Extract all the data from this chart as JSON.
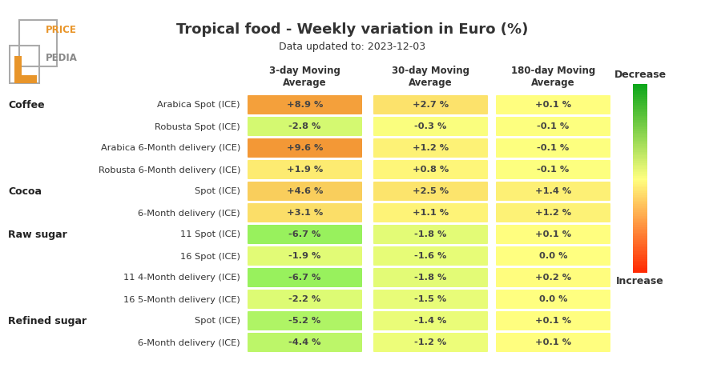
{
  "title": "Tropical food - Weekly variation in Euro (%)",
  "subtitle": "Data updated to: 2023-12-03",
  "col_headers": [
    "3-day Moving\nAverage",
    "30-day Moving\nAverage",
    "180-day Moving\nAverage"
  ],
  "categories": [
    {
      "group": "Coffee",
      "label": "Arabica Spot (ICE)"
    },
    {
      "group": "",
      "label": "Robusta Spot (ICE)"
    },
    {
      "group": "",
      "label": "Arabica 6-Month delivery (ICE)"
    },
    {
      "group": "",
      "label": "Robusta 6-Month delivery (ICE)"
    },
    {
      "group": "Cocoa",
      "label": "Spot (ICE)"
    },
    {
      "group": "",
      "label": "6-Month delivery (ICE)"
    },
    {
      "group": "Raw sugar",
      "label": "11 Spot (ICE)"
    },
    {
      "group": "",
      "label": "16 Spot (ICE)"
    },
    {
      "group": "",
      "label": "11 4-Month delivery (ICE)"
    },
    {
      "group": "",
      "label": "16 5-Month delivery (ICE)"
    },
    {
      "group": "Refined sugar",
      "label": "Spot (ICE)"
    },
    {
      "group": "",
      "label": "6-Month delivery (ICE)"
    }
  ],
  "values": [
    [
      8.9,
      2.7,
      0.1
    ],
    [
      -2.8,
      -0.3,
      -0.1
    ],
    [
      9.6,
      1.2,
      -0.1
    ],
    [
      1.9,
      0.8,
      -0.1
    ],
    [
      4.6,
      2.5,
      1.4
    ],
    [
      3.1,
      1.1,
      1.2
    ],
    [
      -6.7,
      -1.8,
      0.1
    ],
    [
      -1.9,
      -1.6,
      0.0
    ],
    [
      -6.7,
      -1.8,
      0.2
    ],
    [
      -2.2,
      -1.5,
      0.0
    ],
    [
      -5.2,
      -1.4,
      0.1
    ],
    [
      -4.4,
      -1.2,
      0.1
    ]
  ],
  "display_texts": [
    [
      "+8.9 %",
      "+2.7 %",
      "+0.1 %"
    ],
    [
      "-2.8 %",
      "-0.3 %",
      "-0.1 %"
    ],
    [
      "+9.6 %",
      "+1.2 %",
      "-0.1 %"
    ],
    [
      "+1.9 %",
      "+0.8 %",
      "-0.1 %"
    ],
    [
      "+4.6 %",
      "+2.5 %",
      "+1.4 %"
    ],
    [
      "+3.1 %",
      "+1.1 %",
      "+1.2 %"
    ],
    [
      "-6.7 %",
      "-1.8 %",
      "+0.1 %"
    ],
    [
      "-1.9 %",
      "-1.6 %",
      "0.0 %"
    ],
    [
      "-6.7 %",
      "-1.8 %",
      "+0.2 %"
    ],
    [
      "-2.2 %",
      "-1.5 %",
      "0.0 %"
    ],
    [
      "-5.2 %",
      "-1.4 %",
      "+0.1 %"
    ],
    [
      "-4.4 %",
      "-1.2 %",
      "+0.1 %"
    ]
  ],
  "bg_color": "#ffffff",
  "title_color": "#333333",
  "colorbar_label_decrease": "Decrease",
  "colorbar_label_increase": "Increase",
  "vmin": -10.0,
  "vmax": 10.0,
  "figwidth": 8.8,
  "figheight": 4.8,
  "dpi": 100
}
